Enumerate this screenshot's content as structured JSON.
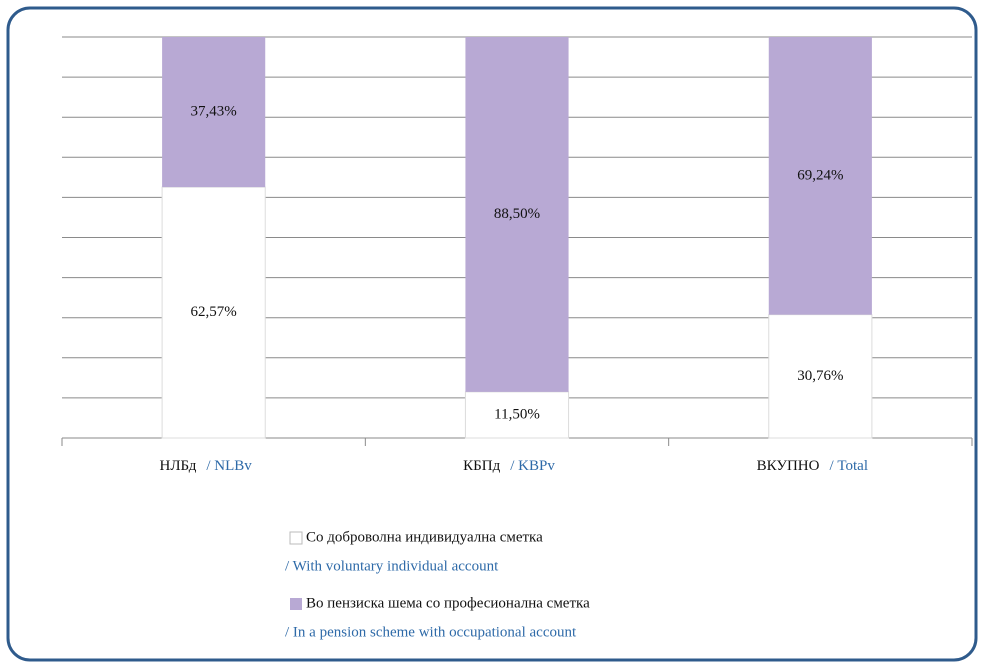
{
  "chart_data": {
    "type": "stacked_bar",
    "categories": [
      "НЛБд",
      "КБПд",
      "ВКУПНО"
    ],
    "category_translations": [
      "/ NLBv",
      "/ KBPv",
      "/ Total"
    ],
    "series": [
      {
        "name": "Со доброволна индивидуална сметка",
        "name_translation": "/ With voluntary individual account",
        "color": "#ffffff",
        "values": [
          62.57,
          11.5,
          30.76
        ],
        "value_labels": [
          "62,57%",
          "11,50%",
          "30,76%"
        ]
      },
      {
        "name": "Во пензиска шема со професионална сметка",
        "name_translation": "/ In a pension scheme with occupational account",
        "color": "#b8a9d4",
        "values": [
          37.43,
          88.5,
          69.24
        ],
        "value_labels": [
          "37,43%",
          "88,50%",
          "69,24%"
        ]
      }
    ],
    "ylim": [
      0,
      100
    ],
    "gridlines": [
      0,
      10,
      20,
      30,
      40,
      50,
      60,
      70,
      80,
      90,
      100
    ],
    "grid": true
  }
}
